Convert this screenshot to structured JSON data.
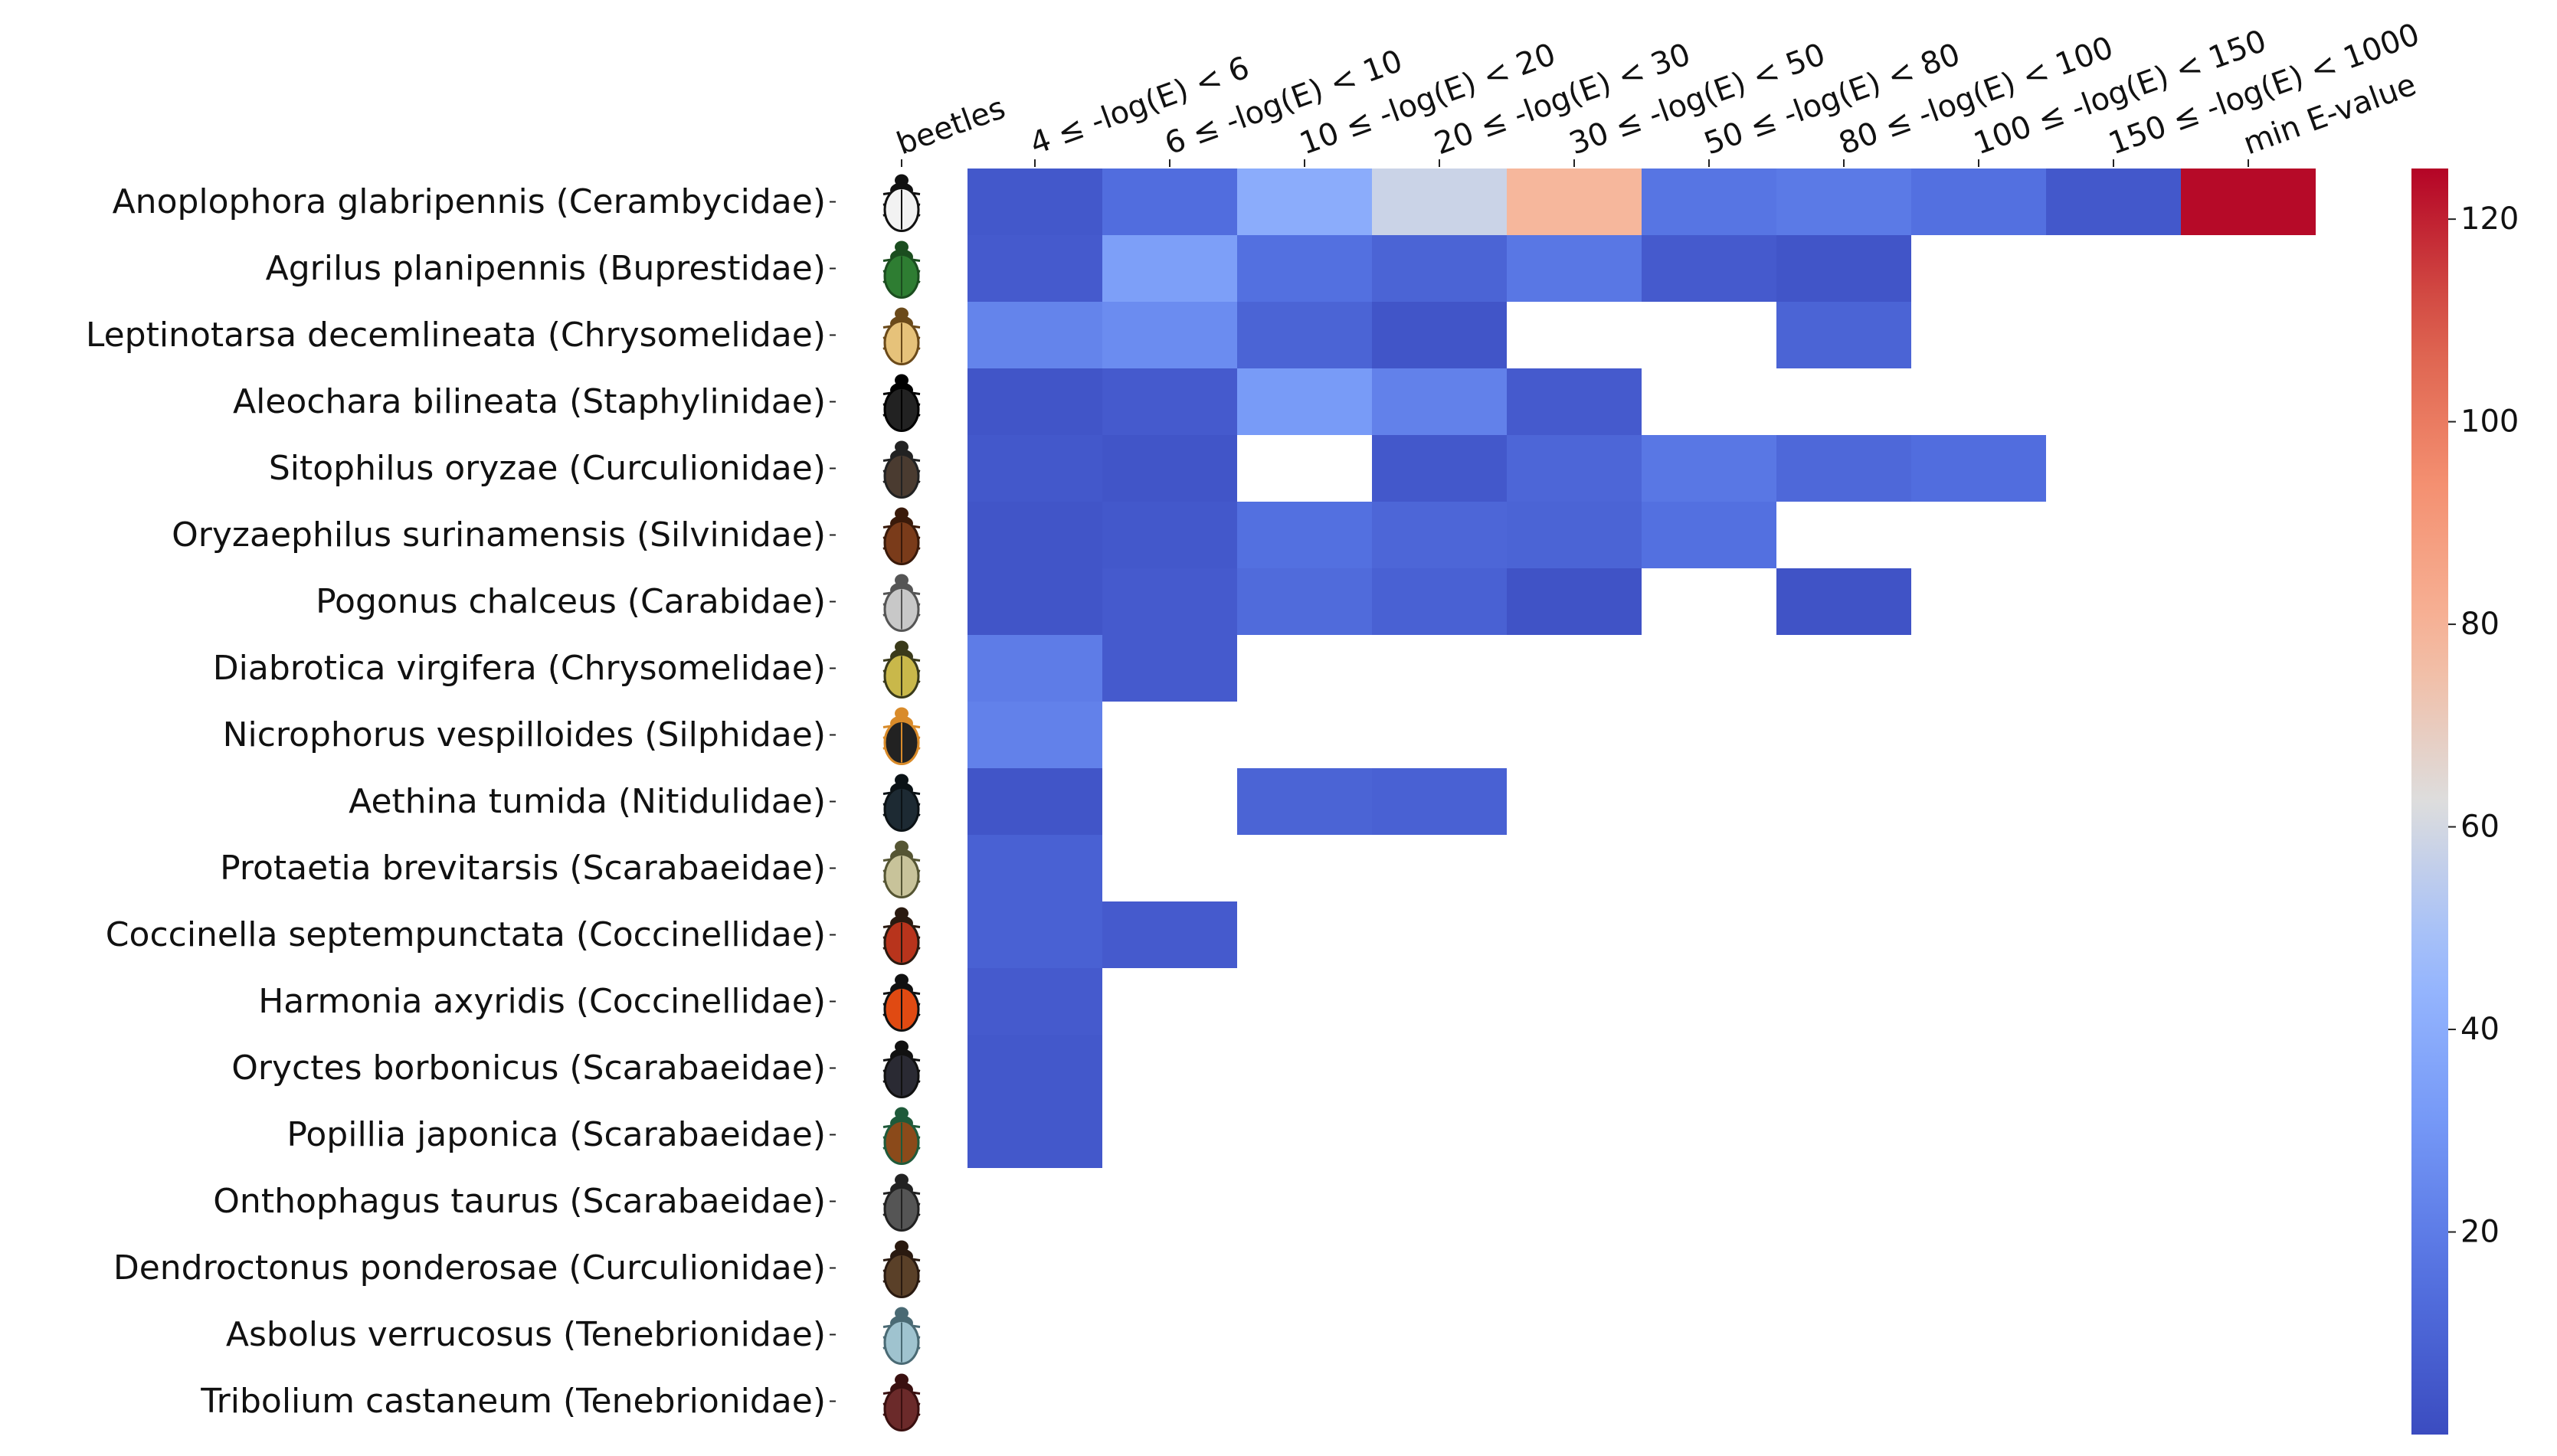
{
  "chart_data": {
    "type": "heatmap",
    "title": "",
    "xlabel": "",
    "ylabel": "",
    "columns": [
      "beetles",
      "4 ≤ -log(E) < 6",
      "6 ≤ -log(E) < 10",
      "10 ≤ -log(E) < 20",
      "20 ≤ -log(E) < 30",
      "30 ≤ -log(E) < 50",
      "50 ≤ -log(E) < 80",
      "80 ≤ -log(E) < 100",
      "100 ≤ -log(E) < 150",
      "150 ≤ -log(E) < 1000",
      "min E-value"
    ],
    "rows": [
      "Anoplophora glabripennis (Cerambycidae)",
      "Agrilus planipennis (Buprestidae)",
      "Leptinotarsa decemlineata (Chrysomelidae)",
      "Aleochara bilineata (Staphylinidae)",
      "Sitophilus oryzae (Curculionidae)",
      "Oryzaephilus surinamensis (Silvinidae)",
      "Pogonus chalceus (Carabidae)",
      "Diabrotica virgifera (Chrysomelidae)",
      "Nicrophorus vespilloides (Silphidae)",
      "Aethina tumida (Nitidulidae)",
      "Protaetia brevitarsis (Scarabaeidae)",
      "Coccinella septempunctata (Coccinellidae)",
      "Harmonia axyridis (Coccinellidae)",
      "Oryctes borbonicus (Scarabaeidae)",
      "Popillia japonica (Scarabaeidae)",
      "Onthophagus taurus (Scarabaeidae)",
      "Dendroctonus ponderosae (Curculionidae)",
      "Asbolus verrucosus (Tenebrionidae)",
      "Tribolium castaneum (Tenebrionidae)"
    ],
    "values": [
      [
        5,
        14,
        40,
        58,
        78,
        17,
        19,
        15,
        5,
        124
      ],
      [
        6,
        34,
        15,
        10,
        18,
        6,
        4,
        null,
        null,
        null
      ],
      [
        23,
        26,
        10,
        4,
        null,
        null,
        10,
        null,
        null,
        null
      ],
      [
        4,
        6,
        32,
        22,
        6,
        null,
        null,
        null,
        null,
        null
      ],
      [
        5,
        4,
        null,
        5,
        11,
        18,
        12,
        14,
        null,
        null
      ],
      [
        4,
        5,
        15,
        11,
        10,
        15,
        null,
        null,
        null,
        null
      ],
      [
        4,
        6,
        13,
        9,
        3,
        null,
        3,
        null,
        null,
        null
      ],
      [
        20,
        6,
        null,
        null,
        null,
        null,
        null,
        null,
        null,
        null
      ],
      [
        22,
        null,
        null,
        null,
        null,
        null,
        null,
        null,
        null,
        null
      ],
      [
        4,
        null,
        10,
        9,
        null,
        null,
        null,
        null,
        null,
        null
      ],
      [
        9,
        null,
        null,
        null,
        null,
        null,
        null,
        null,
        null,
        null
      ],
      [
        9,
        6,
        null,
        null,
        null,
        null,
        null,
        null,
        null,
        null
      ],
      [
        6,
        null,
        null,
        null,
        null,
        null,
        null,
        null,
        null,
        null
      ],
      [
        5,
        null,
        null,
        null,
        null,
        null,
        null,
        null,
        null,
        null
      ],
      [
        5,
        null,
        null,
        null,
        null,
        null,
        null,
        null,
        null,
        null
      ],
      [
        null,
        null,
        null,
        null,
        null,
        null,
        null,
        null,
        null,
        null
      ],
      [
        null,
        null,
        null,
        null,
        null,
        null,
        null,
        null,
        null,
        null
      ],
      [
        null,
        null,
        null,
        null,
        null,
        null,
        null,
        null,
        null,
        null
      ],
      [
        null,
        null,
        null,
        null,
        null,
        null,
        null,
        null,
        null,
        null
      ]
    ],
    "colorbar": {
      "colormap": "coolwarm",
      "range": [
        0,
        125
      ],
      "ticks": [
        20,
        40,
        60,
        80,
        100,
        120
      ]
    }
  }
}
